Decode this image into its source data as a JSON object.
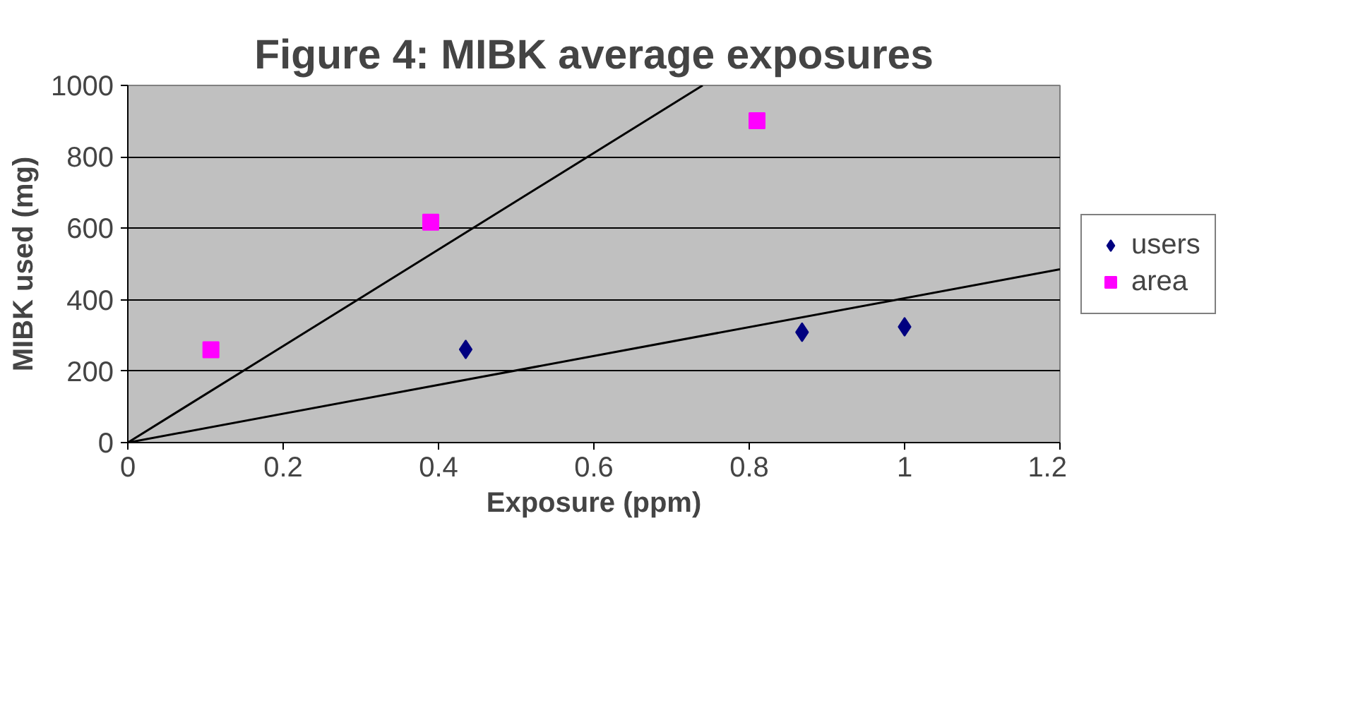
{
  "chart_data": {
    "type": "scatter",
    "title": "Figure 4: MIBK average exposures",
    "xlabel": "Exposure (ppm)",
    "ylabel": "MIBK used (mg)",
    "xlim": [
      0,
      1.2
    ],
    "xticks": [
      0,
      0.2,
      0.4,
      0.6,
      0.8,
      1,
      1.2
    ],
    "ylim": [
      0,
      1000
    ],
    "yticks": [
      0,
      200,
      400,
      600,
      800,
      1000
    ],
    "grid": "y",
    "legend": "right",
    "series": [
      {
        "name": "users",
        "color": "#000080",
        "marker": "diamond",
        "x": [
          0.435,
          0.868,
          1.0
        ],
        "values": [
          261,
          309,
          324
        ]
      },
      {
        "name": "area",
        "color": "#ff00ff",
        "marker": "square",
        "x": [
          0.107,
          0.39,
          0.81
        ],
        "values": [
          260,
          617,
          901
        ]
      },
      {
        "type": "line",
        "color": "#000000",
        "marker": "none",
        "x": [
          0,
          0.74
        ],
        "values": [
          0,
          1000
        ]
      },
      {
        "type": "line",
        "color": "#000000",
        "marker": "none",
        "x": [
          0,
          1.2
        ],
        "values": [
          0,
          485
        ]
      }
    ]
  }
}
